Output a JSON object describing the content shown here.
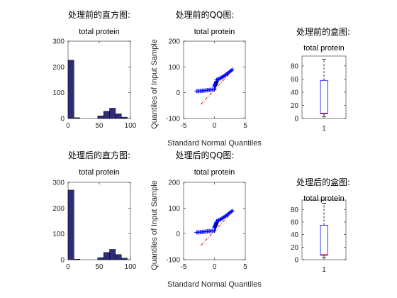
{
  "colors": {
    "bar_fill": "#2f2b76",
    "bar_edge": "#000000",
    "qq_marker": "#0000ff",
    "qq_refline": "#ff0000",
    "qq_fitline": "#000000",
    "box_edge": "#0000ff",
    "box_median": "#ff0000",
    "whisker": "#000000"
  },
  "chart_data": [
    {
      "type": "bar",
      "suptitle": "处理前的直方图:",
      "title": "total protein",
      "bin_edges": [
        0,
        9.5,
        19,
        28.5,
        38,
        47.5,
        57,
        66.5,
        76,
        85.5,
        95
      ],
      "values": [
        226,
        3,
        0,
        0,
        0,
        10,
        28,
        40,
        18,
        5
      ],
      "xlim": [
        0,
        100
      ],
      "ylim": [
        0,
        300
      ],
      "xticks": [
        0,
        50,
        100
      ],
      "yticks": [
        0,
        100,
        200,
        300
      ]
    },
    {
      "type": "scatter",
      "suptitle": "处理前的QQ图:",
      "title": "total protein",
      "xlabel": "Standard Normal Quantiles",
      "ylabel": "Quantiles of Input Sample",
      "marker": "+",
      "quantile_groups": [
        {
          "x_range": [
            -2.9,
            0.0
          ],
          "y_range": [
            6,
            13
          ]
        },
        {
          "x_range": [
            0.0,
            0.35
          ],
          "y_range": [
            25,
            45
          ]
        },
        {
          "x_range": [
            0.35,
            2.9
          ],
          "y_range": [
            50,
            90
          ]
        }
      ],
      "reference_line": {
        "x": [
          -2.2,
          3.0
        ],
        "y": [
          -45,
          88
        ]
      },
      "fit_line": {
        "x": [
          0.0,
          0.5
        ],
        "y": [
          5,
          50
        ]
      },
      "xlim": [
        -5,
        5
      ],
      "ylim": [
        -100,
        200
      ],
      "xticks": [
        -5,
        0,
        5
      ],
      "yticks": [
        -100,
        0,
        100,
        200
      ]
    },
    {
      "type": "box",
      "suptitle": "处理前的盒图:",
      "title": "total protein",
      "category": "1",
      "min": 3,
      "q1": 7,
      "median": 8,
      "q3": 58,
      "max": 90,
      "ylim": [
        0,
        95
      ],
      "yticks": [
        0,
        20,
        40,
        60,
        80
      ],
      "xticks": [
        "1"
      ]
    },
    {
      "type": "bar",
      "suptitle": "处理后的直方图:",
      "title": "total protein",
      "bin_edges": [
        0,
        9.5,
        19,
        28.5,
        38,
        47.5,
        57,
        66.5,
        76,
        85.5,
        95
      ],
      "values": [
        270,
        2,
        0,
        0,
        0,
        8,
        28,
        40,
        20,
        6
      ],
      "xlim": [
        0,
        100
      ],
      "ylim": [
        0,
        300
      ],
      "xticks": [
        0,
        50,
        100
      ],
      "yticks": [
        0,
        100,
        200,
        300
      ]
    },
    {
      "type": "scatter",
      "suptitle": "处理后的QQ图:",
      "title": "total protein",
      "xlabel": "Standard Normal Quantiles",
      "ylabel": "Quantiles of Input Sample",
      "marker": "+",
      "quantile_groups": [
        {
          "x_range": [
            -2.9,
            0.0
          ],
          "y_range": [
            6,
            13
          ]
        },
        {
          "x_range": [
            0.0,
            0.35
          ],
          "y_range": [
            25,
            45
          ]
        },
        {
          "x_range": [
            0.35,
            2.9
          ],
          "y_range": [
            50,
            90
          ]
        }
      ],
      "reference_line": {
        "x": [
          -2.2,
          3.0
        ],
        "y": [
          -45,
          88
        ]
      },
      "fit_line": {
        "x": [
          0.0,
          0.5
        ],
        "y": [
          5,
          50
        ]
      },
      "xlim": [
        -5,
        5
      ],
      "ylim": [
        -100,
        200
      ],
      "xticks": [
        -5,
        0,
        5
      ],
      "yticks": [
        -100,
        0,
        100,
        200
      ]
    },
    {
      "type": "box",
      "suptitle": "处理后的盒图:",
      "title": "total protein",
      "category": "1",
      "min": 3,
      "q1": 7,
      "median": 8,
      "q3": 55,
      "max": 90,
      "ylim": [
        0,
        95
      ],
      "yticks": [
        0,
        20,
        40,
        60,
        80
      ],
      "xticks": [
        "1"
      ]
    }
  ]
}
